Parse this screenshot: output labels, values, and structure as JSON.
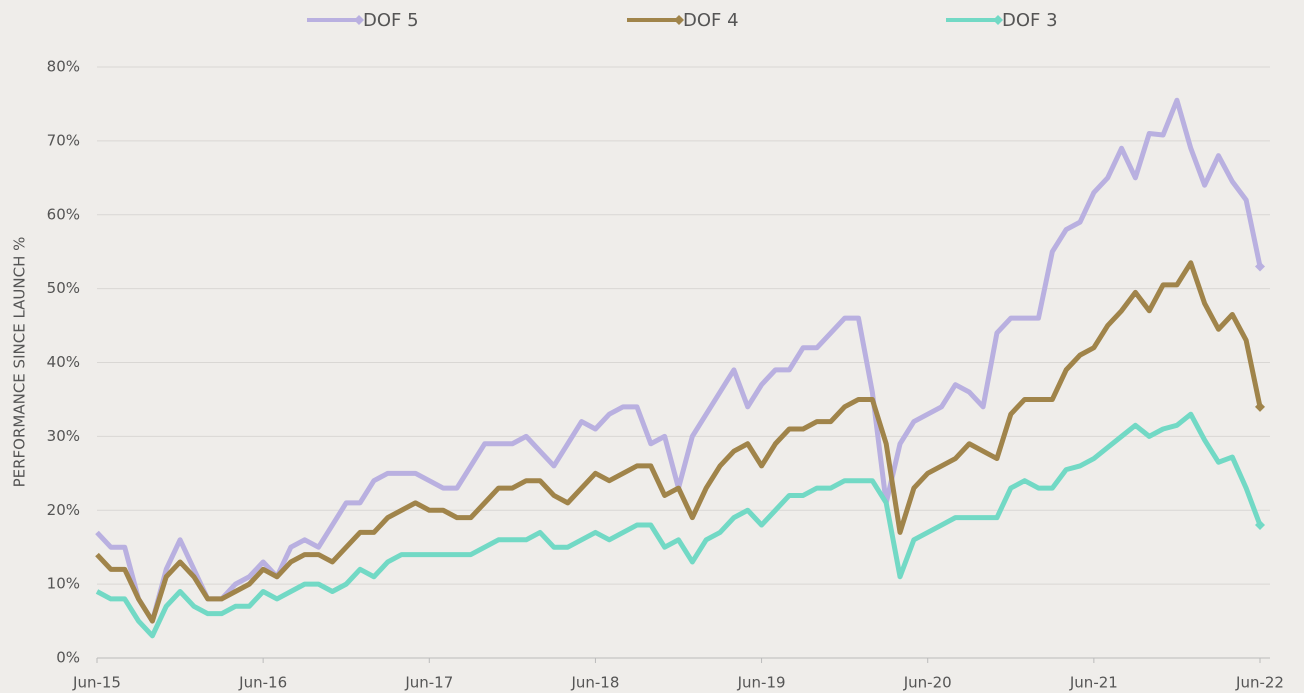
{
  "chart_data": {
    "type": "line",
    "y_label": "PERFORMANCE SINCE LAUNCH %",
    "categories": [
      "Jun-15",
      null,
      null,
      null,
      null,
      null,
      null,
      null,
      null,
      null,
      null,
      null,
      "Jun-16",
      null,
      null,
      null,
      null,
      null,
      null,
      null,
      null,
      null,
      null,
      null,
      "Jun-17",
      null,
      null,
      null,
      null,
      null,
      null,
      null,
      null,
      null,
      null,
      null,
      "Jun-18",
      null,
      null,
      null,
      null,
      null,
      null,
      null,
      null,
      null,
      null,
      null,
      "Jun-19",
      null,
      null,
      null,
      null,
      null,
      null,
      null,
      null,
      null,
      null,
      null,
      "Jun-20",
      null,
      null,
      null,
      null,
      null,
      null,
      null,
      null,
      null,
      null,
      null,
      "Jun-21",
      null,
      null,
      null,
      null,
      null,
      null,
      null,
      null,
      null,
      null,
      null,
      "Jun-22"
    ],
    "series": [
      {
        "name": "DOF 5",
        "color": "#b9b0e0",
        "values": [
          17,
          15,
          15,
          8,
          5,
          12,
          16,
          12,
          8,
          8,
          10,
          11,
          13,
          11,
          15,
          16,
          15,
          18,
          21,
          21,
          24,
          25,
          25,
          25,
          24,
          23,
          23,
          26,
          29,
          29,
          29,
          30,
          28,
          26,
          29,
          32,
          31,
          33,
          34,
          34,
          29,
          30,
          23,
          30,
          33,
          36,
          39,
          34,
          37,
          39,
          39,
          42,
          42,
          44,
          46,
          46,
          36,
          21,
          29,
          32,
          33,
          34,
          37,
          36,
          34,
          44,
          46,
          46,
          46,
          55,
          58,
          59,
          63,
          65,
          69,
          65,
          71,
          70.8,
          75.5,
          69,
          64,
          68,
          64.5,
          62,
          53
        ]
      },
      {
        "name": "DOF 4",
        "color": "#a0844a",
        "values": [
          14,
          12,
          12,
          8,
          5,
          11,
          13,
          11,
          8,
          8,
          9,
          10,
          12,
          11,
          13,
          14,
          14,
          13,
          15,
          17,
          17,
          19,
          20,
          21,
          20,
          20,
          19,
          19,
          21,
          23,
          23,
          24,
          24,
          22,
          21,
          23,
          25,
          24,
          25,
          26,
          26,
          22,
          23,
          19,
          23,
          26,
          28,
          29,
          26,
          29,
          31,
          31,
          32,
          32,
          34,
          35,
          35,
          29,
          17,
          23,
          25,
          26,
          27,
          29,
          28,
          27,
          33,
          35,
          35,
          35,
          39,
          41,
          42,
          45,
          47,
          49.5,
          47,
          50.5,
          50.5,
          53.5,
          48,
          44.5,
          46.5,
          43,
          34
        ]
      },
      {
        "name": "DOF 3",
        "color": "#72d9c5",
        "values": [
          9,
          8,
          8,
          5,
          3,
          7,
          9,
          7,
          6,
          6,
          7,
          7,
          9,
          8,
          9,
          10,
          10,
          9,
          10,
          12,
          11,
          13,
          14,
          14,
          14,
          14,
          14,
          14,
          15,
          16,
          16,
          16,
          17,
          15,
          15,
          16,
          17,
          16,
          17,
          18,
          18,
          15,
          16,
          13,
          16,
          17,
          19,
          20,
          18,
          20,
          22,
          22,
          23,
          23,
          24,
          24,
          24,
          21,
          11,
          16,
          17,
          18,
          19,
          19,
          19,
          19,
          23,
          24,
          23,
          23,
          25.5,
          26,
          27,
          28.5,
          30,
          31.5,
          30,
          31,
          31.5,
          33,
          29.5,
          26.5,
          27.2,
          23,
          18
        ]
      }
    ],
    "ylim": [
      0,
      80
    ],
    "yticks": [
      {
        "value": 0,
        "label": "0%"
      },
      {
        "value": 10,
        "label": "10%"
      },
      {
        "value": 20,
        "label": "20%"
      },
      {
        "value": 30,
        "label": "30%"
      },
      {
        "value": 40,
        "label": "40%"
      },
      {
        "value": 50,
        "label": "50%"
      },
      {
        "value": 60,
        "label": "60%"
      },
      {
        "value": 70,
        "label": "70%"
      },
      {
        "value": 80,
        "label": "80%"
      }
    ],
    "grid": true,
    "legend": "top"
  }
}
